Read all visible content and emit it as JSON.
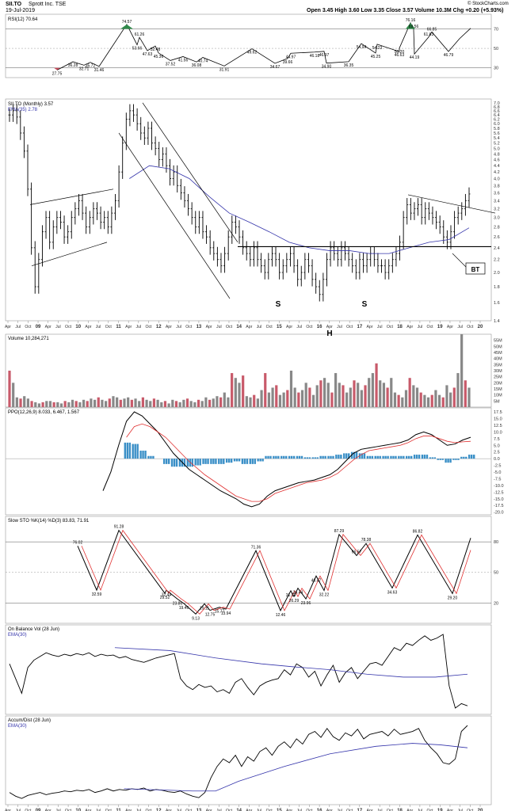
{
  "header": {
    "symbol": "SII.TO",
    "company": "Sprott Inc. TSE",
    "date": "19-Jul-2019",
    "quote": "Open 3.45 High 3.60 Low 3.35 Close 3.57 Volume 10.3M Chg +0.20 (+5.93%)",
    "credit": "© StockCharts.com"
  },
  "x_labels": [
    "Apr",
    "Jul",
    "Oct",
    "09",
    "Apr",
    "Jul",
    "Oct",
    "10",
    "Apr",
    "Jul",
    "Oct",
    "11",
    "Apr",
    "Jul",
    "Oct",
    "12",
    "Apr",
    "Jul",
    "Oct",
    "13",
    "Apr",
    "Jul",
    "Oct",
    "14",
    "Apr",
    "Jul",
    "Oct",
    "15",
    "Apr",
    "Jul",
    "Oct",
    "16",
    "Apr",
    "Jul",
    "Oct",
    "17",
    "Apr",
    "Jul",
    "Oct",
    "18",
    "Apr",
    "Jul",
    "Oct",
    "19",
    "Apr",
    "Jul",
    "Oct",
    "20"
  ],
  "panels": {
    "rsi": {
      "label": "RSI(12) 70.64",
      "ticks": [
        "70",
        "50",
        "30"
      ],
      "points": [
        {
          "label": "27.75",
          "value": 27.75
        },
        {
          "label": "36.28",
          "value": 36.28
        },
        {
          "label": "32.71",
          "value": 32.71
        },
        {
          "label": "35.72",
          "value": 35.72
        },
        {
          "label": "31.46",
          "value": 31.46
        },
        {
          "label": "74.57",
          "value": 74.57
        },
        {
          "label": "61.26",
          "value": 61.26
        },
        {
          "label": "53.66",
          "value": 53.66
        },
        {
          "label": "52.48",
          "value": 52.48
        },
        {
          "label": "47.63",
          "value": 47.63
        },
        {
          "label": "45.36",
          "value": 45.36
        },
        {
          "label": "37.52",
          "value": 37.52
        },
        {
          "label": "41.56",
          "value": 41.56
        },
        {
          "label": "36.08",
          "value": 36.08
        },
        {
          "label": "40.74",
          "value": 40.74
        },
        {
          "label": "31.91",
          "value": 31.91
        },
        {
          "label": "49.62",
          "value": 49.62
        },
        {
          "label": "34.67",
          "value": 34.67
        },
        {
          "label": "44.97",
          "value": 44.97
        },
        {
          "label": "39.66",
          "value": 39.66
        },
        {
          "label": "46.18",
          "value": 46.18
        },
        {
          "label": "34.90",
          "value": 34.9
        },
        {
          "label": "46.97",
          "value": 46.97
        },
        {
          "label": "36.35",
          "value": 36.35
        },
        {
          "label": "54.94",
          "value": 54.94
        },
        {
          "label": "45.25",
          "value": 45.25
        },
        {
          "label": "54.23",
          "value": 54.23
        },
        {
          "label": "46.63",
          "value": 46.63
        },
        {
          "label": "50.20",
          "value": 50.2
        },
        {
          "label": "44.19",
          "value": 44.19
        },
        {
          "label": "76.16",
          "value": 76.16
        },
        {
          "label": "69.56",
          "value": 69.56
        },
        {
          "label": "61.63",
          "value": 61.63
        },
        {
          "label": "66.85",
          "value": 66.85
        },
        {
          "label": "46.79",
          "value": 46.79
        }
      ]
    },
    "price": {
      "label_symbol": "SII.TO (Monthly) 3.57",
      "label_ema": "EMA(35) 2.78",
      "ticks": [
        "7.0",
        "6.8",
        "6.6",
        "6.4",
        "6.2",
        "6.0",
        "5.8",
        "5.6",
        "5.4",
        "5.2",
        "5.0",
        "4.8",
        "4.6",
        "4.4",
        "4.2",
        "4.0",
        "3.8",
        "3.6",
        "3.4",
        "3.2",
        "3.0",
        "2.8",
        "2.6",
        "2.4",
        "2.2",
        "2.0",
        "1.8",
        "1.6",
        "1.4"
      ],
      "annotations": [
        "S",
        "H",
        "S",
        "BT"
      ]
    },
    "volume": {
      "label": "Volume 10,284,271",
      "ticks": [
        "55M",
        "50M",
        "45M",
        "40M",
        "35M",
        "30M",
        "25M",
        "20M",
        "15M",
        "10M",
        "5M"
      ]
    },
    "ppo": {
      "label": "PPO(12,26,9) 8.033, 6.467, 1.567",
      "ticks": [
        "17.5",
        "15.0",
        "12.5",
        "10.0",
        "7.5",
        "5.0",
        "2.5",
        "0.0",
        "-2.5",
        "-5.0",
        "-7.5",
        "-10.0",
        "-12.5",
        "-15.0",
        "-17.5",
        "-20.0"
      ]
    },
    "sto": {
      "label": "Slow STO %K(14) %D(3) 83.83, 71.91",
      "ticks": [
        "80",
        "50",
        "20"
      ],
      "points": [
        {
          "label": "76.02",
          "value": 76.02
        },
        {
          "label": "32.59",
          "value": 32.59
        },
        {
          "label": "91.28",
          "value": 91.28
        },
        {
          "label": "32.44",
          "value": 32.44
        },
        {
          "label": "29.52",
          "value": 29.52
        },
        {
          "label": "19.46",
          "value": 19.46
        },
        {
          "label": "23.80",
          "value": 23.8
        },
        {
          "label": "9.13",
          "value": 9.13
        },
        {
          "label": "19.11",
          "value": 19.11
        },
        {
          "label": "12.75",
          "value": 12.75
        },
        {
          "label": "15.77",
          "value": 15.77
        },
        {
          "label": "13.94",
          "value": 13.94
        },
        {
          "label": "71.36",
          "value": 71.36
        },
        {
          "label": "12.46",
          "value": 12.46
        },
        {
          "label": "31.93",
          "value": 31.93
        },
        {
          "label": "34.44",
          "value": 34.44
        },
        {
          "label": "26.29",
          "value": 26.29
        },
        {
          "label": "23.96",
          "value": 23.96
        },
        {
          "label": "46.47",
          "value": 46.47
        },
        {
          "label": "32.22",
          "value": 32.22
        },
        {
          "label": "87.29",
          "value": 87.29
        },
        {
          "label": "66.57",
          "value": 66.57
        },
        {
          "label": "78.38",
          "value": 78.38
        },
        {
          "label": "34.63",
          "value": 34.63
        },
        {
          "label": "86.82",
          "value": 86.82
        },
        {
          "label": "29.20",
          "value": 29.2
        }
      ]
    },
    "obv": {
      "label_main": "On Balance Vol (28 Jun)",
      "label_ema": "EMA(30)"
    },
    "ad": {
      "label_main": "Accum/Dist (28 Jun)",
      "label_ema": "EMA(30)"
    }
  },
  "chart_data": {
    "type": "line",
    "title": "SII.TO Sprott Inc. TSE",
    "x": [
      "2008-04",
      "2008-10",
      "2009-04",
      "2009-10",
      "2010-04",
      "2010-10",
      "2011-04",
      "2011-10",
      "2012-04",
      "2012-10",
      "2013-04",
      "2013-10",
      "2014-04",
      "2014-10",
      "2015-04",
      "2015-10",
      "2016-04",
      "2016-10",
      "2017-04",
      "2017-10",
      "2018-04",
      "2018-10",
      "2019-04",
      "2019-07"
    ],
    "series": [
      {
        "name": "SII.TO (Monthly) 3.57",
        "values": [
          6.6,
          3.0,
          2.7,
          3.3,
          3.4,
          3.6,
          6.5,
          6.0,
          5.2,
          4.5,
          3.4,
          2.3,
          2.8,
          2.4,
          2.2,
          2.1,
          2.2,
          2.6,
          2.2,
          2.1,
          3.3,
          3.0,
          2.6,
          3.57
        ]
      },
      {
        "name": "EMA(35) 2.78",
        "values": [
          null,
          null,
          null,
          null,
          null,
          null,
          4.0,
          4.4,
          4.3,
          4.0,
          3.5,
          3.1,
          2.9,
          2.7,
          2.5,
          2.4,
          2.35,
          2.35,
          2.3,
          2.3,
          2.4,
          2.5,
          2.55,
          2.78
        ]
      }
    ],
    "ylim": [
      1.4,
      7.0
    ],
    "log_scale": true,
    "grid": false
  }
}
